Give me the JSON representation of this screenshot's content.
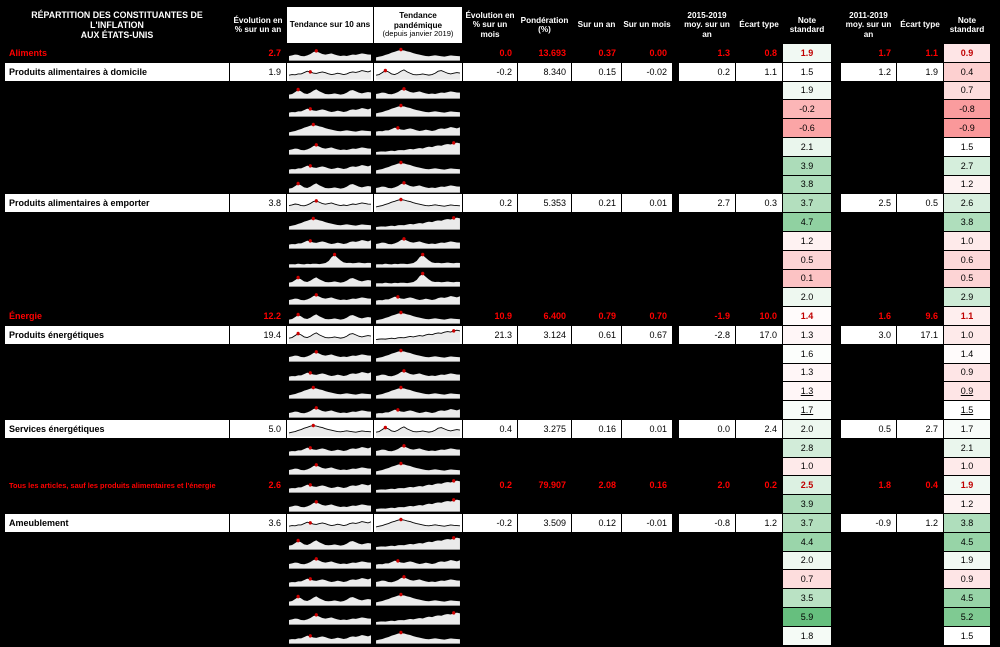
{
  "title": {
    "l1": "RÉPARTITION DES CONSTITUANTES DE L'INFLATION",
    "l2": "AUX ÉTATS-UNIS"
  },
  "columns": {
    "yoy": "Évolution en % sur un an",
    "trend10": "Tendance sur 10 ans",
    "trendPand1": "Tendance pandémique",
    "trendPand2": "(depuis janvier 2019)",
    "mom": "Évolution en % sur un mois",
    "weight": "Pondération (%)",
    "contrib_yoy": "Sur un an",
    "contrib_mom": "Sur un mois",
    "avg1519": "2015-2019 moy. sur un an",
    "std1": "Écart type",
    "note1": "Note standard",
    "avg1119": "2011-2019 moy. sur un an",
    "std2": "Écart type",
    "note2": "Note standard"
  },
  "colors": {
    "section_text": "#FF0000",
    "spark_line": "#000000",
    "spark_fill": "#ebebeb",
    "spark_dot": "#cc0000",
    "scale_min": "#F8696B",
    "scale_mid": "#FFFFFF",
    "scale_max": "#63BE7B",
    "scale_domain": [
      -2,
      1.5,
      6
    ]
  },
  "spark_shapes": {
    "w1": {
      "v": [
        0.25,
        0.3,
        0.28,
        0.35,
        0.35,
        0.45,
        0.55,
        0.5,
        0.42,
        0.38,
        0.45,
        0.5,
        0.44,
        0.36,
        0.3,
        0.34,
        0.4,
        0.36,
        0.3,
        0.35,
        0.45,
        0.5,
        0.46,
        0.52,
        0.6,
        0.55,
        0.5,
        0.58
      ],
      "dot": 7
    },
    "w2": {
      "v": [
        0.3,
        0.35,
        0.42,
        0.38,
        0.3,
        0.28,
        0.35,
        0.45,
        0.6,
        0.65,
        0.55,
        0.45,
        0.4,
        0.45,
        0.5,
        0.42,
        0.35,
        0.3,
        0.34,
        0.3,
        0.36,
        0.42,
        0.38,
        0.44,
        0.5,
        0.46,
        0.42,
        0.4
      ],
      "dot": 9
    },
    "spike": {
      "v": [
        0.2,
        0.22,
        0.2,
        0.25,
        0.22,
        0.2,
        0.24,
        0.22,
        0.26,
        0.24,
        0.22,
        0.25,
        0.3,
        0.45,
        0.75,
        0.9,
        0.7,
        0.5,
        0.35,
        0.3,
        0.32,
        0.28,
        0.3,
        0.34,
        0.3,
        0.28,
        0.32,
        0.3
      ],
      "dot": 15
    },
    "two": {
      "v": [
        0.25,
        0.3,
        0.45,
        0.6,
        0.5,
        0.35,
        0.3,
        0.4,
        0.55,
        0.65,
        0.5,
        0.4,
        0.3,
        0.28,
        0.3,
        0.35,
        0.3,
        0.26,
        0.3,
        0.4,
        0.55,
        0.6,
        0.5,
        0.4,
        0.35,
        0.4,
        0.45,
        0.42
      ],
      "dot": 3
    },
    "rise": {
      "v": [
        0.15,
        0.18,
        0.2,
        0.18,
        0.22,
        0.25,
        0.22,
        0.28,
        0.3,
        0.28,
        0.34,
        0.38,
        0.35,
        0.4,
        0.45,
        0.42,
        0.5,
        0.55,
        0.52,
        0.6,
        0.65,
        0.62,
        0.7,
        0.75,
        0.72,
        0.8,
        0.85,
        0.8
      ],
      "dot": 25
    },
    "hump": {
      "v": [
        0.2,
        0.25,
        0.3,
        0.38,
        0.45,
        0.55,
        0.62,
        0.7,
        0.75,
        0.72,
        0.65,
        0.6,
        0.52,
        0.45,
        0.4,
        0.35,
        0.3,
        0.28,
        0.32,
        0.36,
        0.32,
        0.28,
        0.25,
        0.3,
        0.35,
        0.32,
        0.3,
        0.28
      ],
      "dot": 8
    }
  },
  "chart_data": {
    "type": "table",
    "rows": [
      {
        "l": "Aliments",
        "t": "s",
        "sp": [
          "w2",
          "hump"
        ],
        "v": {
          "yoy": "2.7",
          "mom": "0.0",
          "w": "13.693",
          "cy": "0.37",
          "cm": "0.00",
          "a1": "1.3",
          "s1": "0.8",
          "n1": "1.9",
          "a2": "1.7",
          "s2": "1.1",
          "n2": "0.9"
        }
      },
      {
        "l": "Produits alimentaires à domicile",
        "t": "w",
        "sp": [
          "w1",
          "two"
        ],
        "v": {
          "yoy": "1.9",
          "mom": "-0.2",
          "w": "8.340",
          "cy": "0.15",
          "cm": "-0.02",
          "a1": "0.2",
          "s1": "1.1",
          "n1": "1.5",
          "a2": "1.2",
          "s2": "1.9",
          "n2": "0.4"
        }
      },
      {
        "l": "",
        "t": "h",
        "sp": [
          "two",
          "w2"
        ],
        "v": {
          "n1": "1.9",
          "n2": "0.7"
        }
      },
      {
        "l": "",
        "t": "h",
        "sp": [
          "w1",
          "hump"
        ],
        "v": {
          "n1": "-0.2",
          "n2": "-0.8"
        }
      },
      {
        "l": "",
        "t": "h",
        "sp": [
          "hump",
          "w1"
        ],
        "v": {
          "n1": "-0.6",
          "n2": "-0.9"
        }
      },
      {
        "l": "",
        "t": "h",
        "sp": [
          "w2",
          "rise"
        ],
        "v": {
          "n1": "2.1",
          "n2": "1.5"
        }
      },
      {
        "l": "",
        "t": "h",
        "sp": [
          "w1",
          "hump"
        ],
        "v": {
          "n1": "3.9",
          "n2": "2.7"
        }
      },
      {
        "l": "",
        "t": "h",
        "sp": [
          "two",
          "w2"
        ],
        "v": {
          "n1": "3.8",
          "n2": "1.2"
        }
      },
      {
        "l": "Produits alimentaires à emporter",
        "t": "w",
        "sp": [
          "w2",
          "hump"
        ],
        "v": {
          "yoy": "3.8",
          "mom": "0.2",
          "w": "5.353",
          "cy": "0.21",
          "cm": "0.01",
          "a1": "2.7",
          "s1": "0.3",
          "n1": "3.7",
          "a2": "2.5",
          "s2": "0.5",
          "n2": "2.6"
        }
      },
      {
        "l": "",
        "t": "h",
        "sp": [
          "hump",
          "rise"
        ],
        "v": {
          "n1": "4.7",
          "n2": "3.8"
        }
      },
      {
        "l": "",
        "t": "h",
        "sp": [
          "w1",
          "w2"
        ],
        "v": {
          "n1": "1.2",
          "n2": "1.0"
        }
      },
      {
        "l": "",
        "t": "h",
        "sp": [
          "spike",
          "spike"
        ],
        "v": {
          "n1": "0.5",
          "n2": "0.6"
        }
      },
      {
        "l": "",
        "t": "h",
        "sp": [
          "two",
          "spike"
        ],
        "v": {
          "n1": "0.1",
          "n2": "0.5"
        }
      },
      {
        "l": "",
        "t": "h",
        "sp": [
          "w2",
          "w1"
        ],
        "v": {
          "n1": "2.0",
          "n2": "2.9"
        }
      },
      {
        "l": "Énergie",
        "t": "s",
        "sp": [
          "two",
          "hump"
        ],
        "v": {
          "yoy": "12.2",
          "mom": "10.9",
          "w": "6.400",
          "cy": "0.79",
          "cm": "0.70",
          "a1": "-1.9",
          "s1": "10.0",
          "n1": "1.4",
          "a2": "1.6",
          "s2": "9.6",
          "n2": "1.1"
        }
      },
      {
        "l": "Produits énergétiques",
        "t": "w",
        "sp": [
          "two",
          "rise"
        ],
        "v": {
          "yoy": "19.4",
          "mom": "21.3",
          "w": "3.124",
          "cy": "0.61",
          "cm": "0.67",
          "a1": "-2.8",
          "s1": "17.0",
          "n1": "1.3",
          "a2": "3.0",
          "s2": "17.1",
          "n2": "1.0"
        }
      },
      {
        "l": "",
        "t": "h",
        "sp": [
          "w2",
          "hump"
        ],
        "v": {
          "n1": "1.6",
          "n2": "1.4"
        }
      },
      {
        "l": "",
        "t": "h",
        "sp": [
          "w1",
          "w2"
        ],
        "v": {
          "n1": "1.3",
          "n2": "0.9"
        }
      },
      {
        "l": "",
        "t": "h",
        "u": true,
        "sp": [
          "hump",
          "hump"
        ],
        "v": {
          "n1": "1.3",
          "n2": "0.9"
        }
      },
      {
        "l": "",
        "t": "h",
        "u": true,
        "sp": [
          "w2",
          "w1"
        ],
        "v": {
          "n1": "1.7",
          "n2": "1.5"
        }
      },
      {
        "l": "Services énergétiques",
        "t": "w",
        "sp": [
          "hump",
          "two"
        ],
        "v": {
          "yoy": "5.0",
          "mom": "0.4",
          "w": "3.275",
          "cy": "0.16",
          "cm": "0.01",
          "a1": "0.0",
          "s1": "2.4",
          "n1": "2.0",
          "a2": "0.5",
          "s2": "2.7",
          "n2": "1.7"
        }
      },
      {
        "l": "",
        "t": "h",
        "sp": [
          "w1",
          "w2"
        ],
        "v": {
          "n1": "2.8",
          "n2": "2.1"
        }
      },
      {
        "l": "",
        "t": "h",
        "sp": [
          "w2",
          "hump"
        ],
        "v": {
          "n1": "1.0",
          "n2": "1.0"
        }
      },
      {
        "l": "Tous les articles, sauf les produits alimentaires et l'énergie",
        "t": "s",
        "sp": [
          "w1",
          "rise"
        ],
        "v": {
          "yoy": "2.6",
          "mom": "0.2",
          "w": "79.907",
          "cy": "2.08",
          "cm": "0.16",
          "a1": "2.0",
          "s1": "0.2",
          "n1": "2.5",
          "a2": "1.8",
          "s2": "0.4",
          "n2": "1.9"
        }
      },
      {
        "l": "",
        "t": "h",
        "sp": [
          "w2",
          "rise"
        ],
        "v": {
          "n1": "3.9",
          "n2": "1.2"
        }
      },
      {
        "l": "Ameublement",
        "t": "w",
        "sp": [
          "w1",
          "hump"
        ],
        "v": {
          "yoy": "3.6",
          "mom": "-0.2",
          "w": "3.509",
          "cy": "0.12",
          "cm": "-0.01",
          "a1": "-0.8",
          "s1": "1.2",
          "n1": "3.7",
          "a2": "-0.9",
          "s2": "1.2",
          "n2": "3.8"
        }
      },
      {
        "l": "",
        "t": "h",
        "sp": [
          "two",
          "rise"
        ],
        "v": {
          "n1": "4.4",
          "n2": "4.5"
        }
      },
      {
        "l": "",
        "t": "h",
        "sp": [
          "w2",
          "w1"
        ],
        "v": {
          "n1": "2.0",
          "n2": "1.9"
        }
      },
      {
        "l": "",
        "t": "h",
        "sp": [
          "w1",
          "w2"
        ],
        "v": {
          "n1": "0.7",
          "n2": "0.9"
        }
      },
      {
        "l": "",
        "t": "h",
        "sp": [
          "two",
          "hump"
        ],
        "v": {
          "n1": "3.5",
          "n2": "4.5"
        }
      },
      {
        "l": "",
        "t": "h",
        "sp": [
          "w2",
          "rise"
        ],
        "v": {
          "n1": "5.9",
          "n2": "5.2"
        }
      },
      {
        "l": "",
        "t": "h",
        "sp": [
          "w1",
          "hump"
        ],
        "v": {
          "n1": "1.8",
          "n2": "1.5"
        }
      }
    ]
  }
}
